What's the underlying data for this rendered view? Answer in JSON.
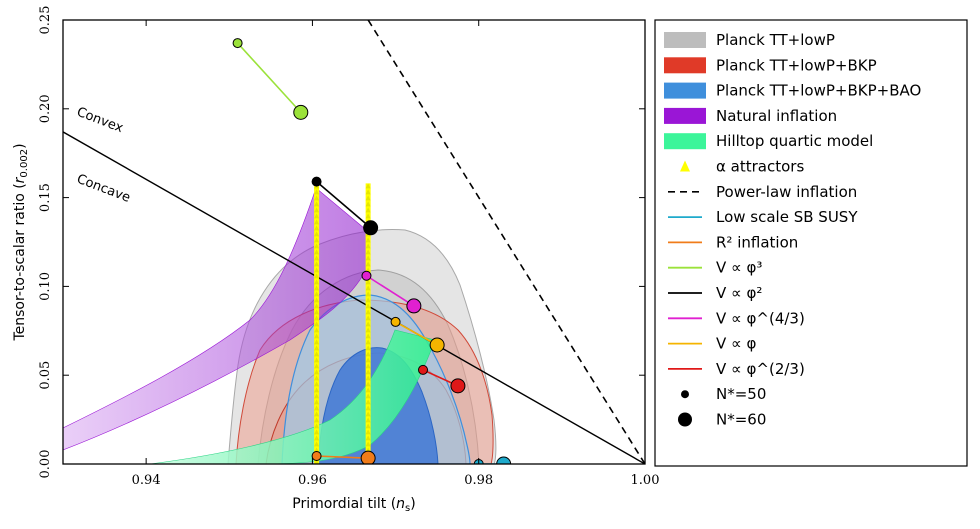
{
  "chart_data": {
    "type": "scatter",
    "xlabel": "Primordial tilt (n_s)",
    "ylabel": "Tensor-to-scalar ratio (r_0.002)",
    "xlim": [
      0.93,
      1.0
    ],
    "ylim": [
      0.0,
      0.25
    ],
    "xticks": [
      "0.94",
      "0.96",
      "0.98",
      "1.00"
    ],
    "yticks": [
      "0.00",
      "0.05",
      "0.10",
      "0.15",
      "0.20",
      "0.25"
    ],
    "grid": false,
    "legend_position": "outside-right",
    "annotations": [
      "Convex",
      "Concave"
    ],
    "legend": [
      {
        "label": "Planck TT+lowP",
        "kind": "fill",
        "color": "#bdbdbd"
      },
      {
        "label": "Planck TT+lowP+BKP",
        "kind": "fill",
        "color": "#e03a28"
      },
      {
        "label": "Planck TT+lowP+BKP+BAO",
        "kind": "fill",
        "color": "#3f8fdc"
      },
      {
        "label": "Natural inflation",
        "kind": "fill",
        "color": "#9a16d6"
      },
      {
        "label": "Hilltop quartic model",
        "kind": "fill",
        "color": "#3cf59a"
      },
      {
        "label": "α attractors",
        "kind": "marker",
        "color": "#ffff00"
      },
      {
        "label": "Power-law inflation",
        "kind": "dash",
        "color": "#000000"
      },
      {
        "label": "Low scale SB SUSY",
        "kind": "line",
        "color": "#1eaacc"
      },
      {
        "label": "R² inflation",
        "kind": "line",
        "color": "#f07c1a"
      },
      {
        "label": "V ∝ φ³",
        "kind": "line",
        "color": "#9be23a"
      },
      {
        "label": "V ∝ φ²",
        "kind": "line",
        "color": "#000000"
      },
      {
        "label": "V ∝ φ^(4/3)",
        "kind": "line",
        "color": "#e020d0"
      },
      {
        "label": "V ∝ φ",
        "kind": "line",
        "color": "#f5b400"
      },
      {
        "label": "V ∝ φ^(2/3)",
        "kind": "line",
        "color": "#e01818"
      },
      {
        "label": "N*=50",
        "kind": "dot-small",
        "color": "#000000"
      },
      {
        "label": "N*=60",
        "kind": "dot-large",
        "color": "#000000"
      }
    ],
    "series": [
      {
        "name": "V ∝ φ³",
        "color": "#9be23a",
        "x": [
          0.951,
          0.9586
        ],
        "y": [
          0.237,
          0.198
        ]
      },
      {
        "name": "V ∝ φ²",
        "color": "#000000",
        "x": [
          0.9605,
          0.967
        ],
        "y": [
          0.159,
          0.133
        ]
      },
      {
        "name": "V ∝ φ^(4/3)",
        "color": "#e020d0",
        "x": [
          0.9665,
          0.9722
        ],
        "y": [
          0.106,
          0.089
        ]
      },
      {
        "name": "V ∝ φ",
        "color": "#f5b400",
        "x": [
          0.97,
          0.975
        ],
        "y": [
          0.08,
          0.067
        ]
      },
      {
        "name": "V ∝ φ^(2/3)",
        "color": "#e01818",
        "x": [
          0.9733,
          0.9775
        ],
        "y": [
          0.053,
          0.044
        ]
      },
      {
        "name": "R² inflation",
        "color": "#f07c1a",
        "x": [
          0.9605,
          0.9667
        ],
        "y": [
          0.0045,
          0.0033
        ]
      },
      {
        "name": "Low scale SB SUSY",
        "color": "#1eaacc",
        "x": [
          0.98,
          0.983
        ],
        "y": [
          0.0,
          0.0
        ]
      }
    ],
    "reference_lines": {
      "power_law_inflation": {
        "x": [
          0.9667,
          1.0
        ],
        "y": [
          0.25,
          0.0
        ]
      },
      "convex_concave_boundary": {
        "x": [
          0.93,
          1.0
        ],
        "y": [
          0.187,
          0.0
        ]
      }
    },
    "alpha_attractors": {
      "n50_x": 0.9605,
      "n60_x": 0.9667,
      "y_range": [
        0.0,
        0.158
      ]
    },
    "contours": [
      {
        "name": "Planck TT+lowP",
        "color": "#bdbdbd",
        "levels": [
          "68%",
          "95%"
        ]
      },
      {
        "name": "Planck TT+lowP+BKP",
        "color": "#e03a28",
        "levels": [
          "68%",
          "95%"
        ]
      },
      {
        "name": "Planck TT+lowP+BKP+BAO",
        "color": "#3f8fdc",
        "levels": [
          "68%",
          "95%"
        ]
      }
    ]
  }
}
